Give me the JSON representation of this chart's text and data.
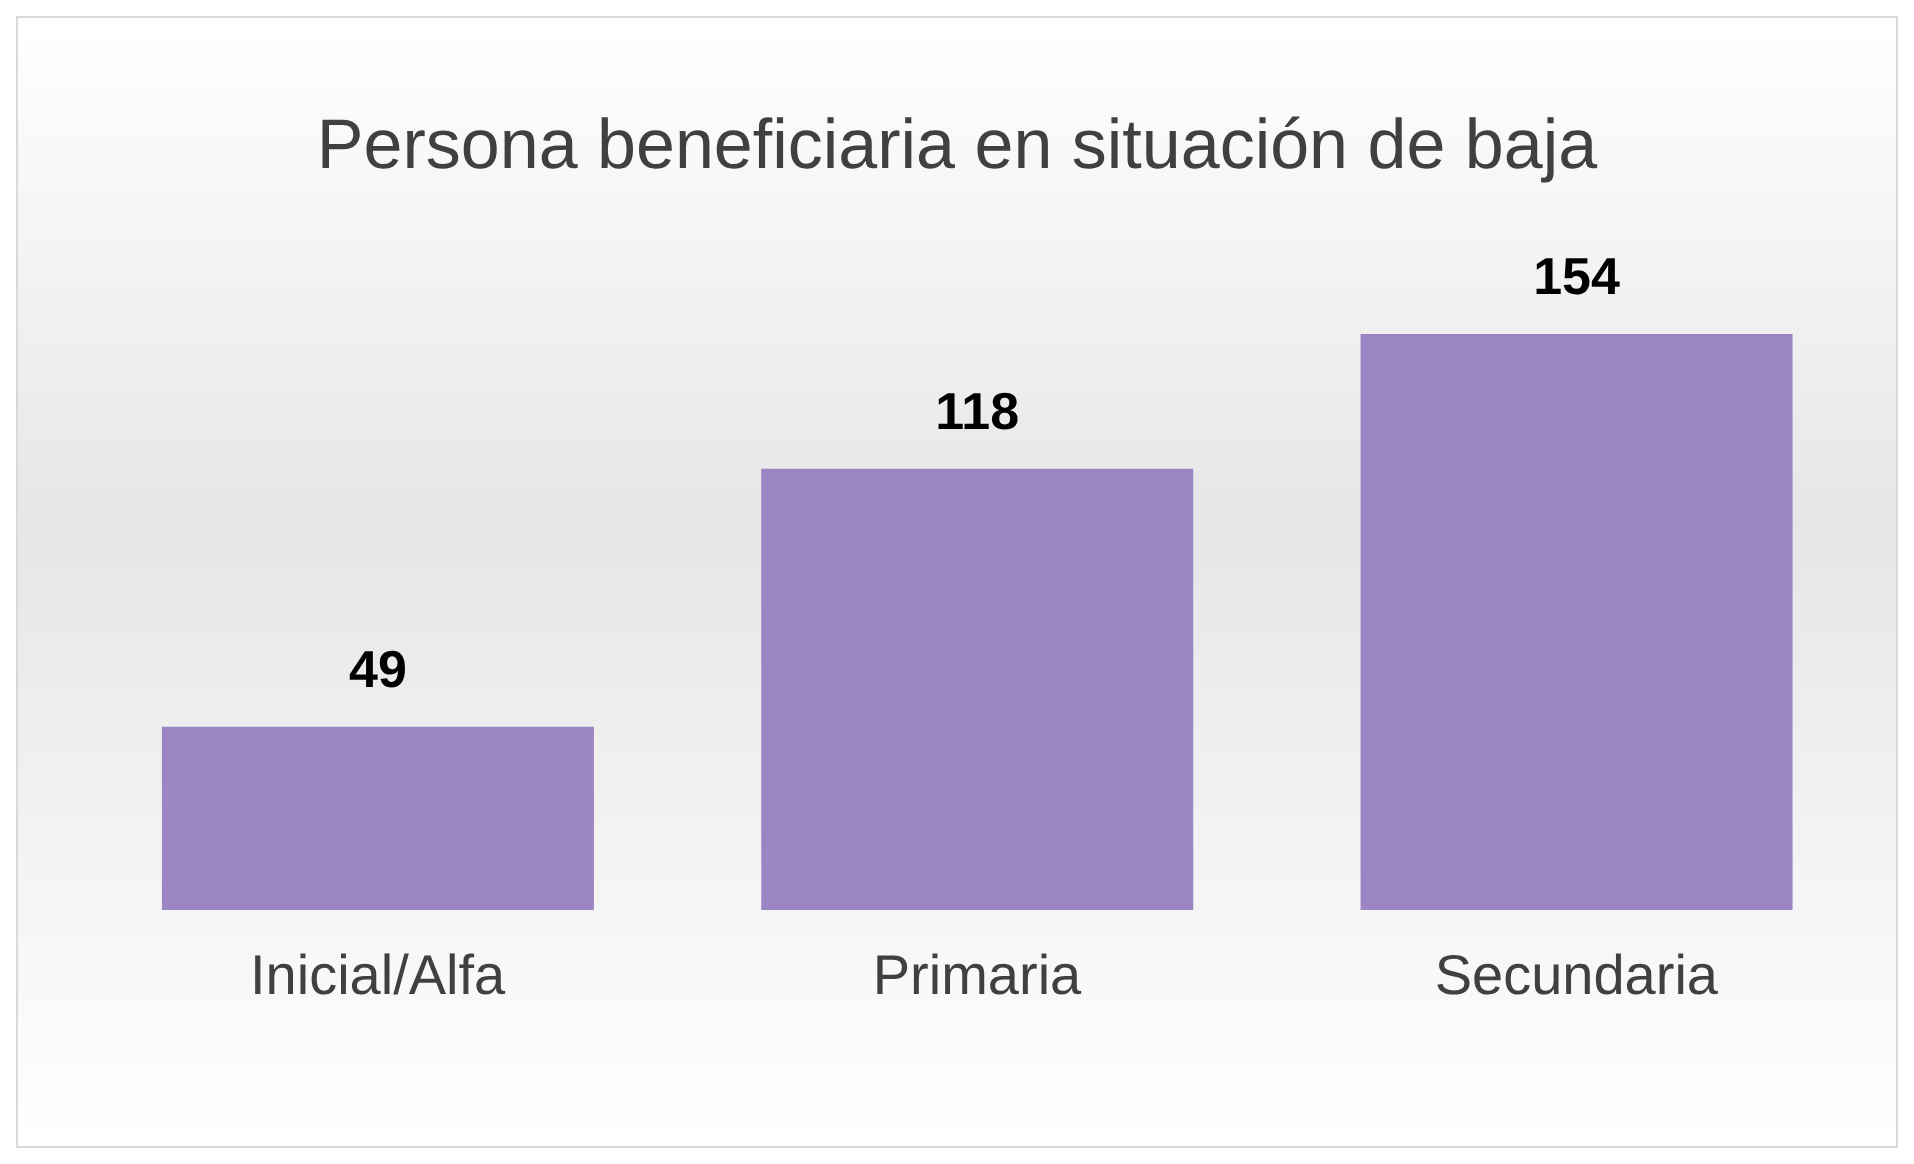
{
  "chart_data": {
    "type": "bar",
    "title": "Persona beneficiaria en situación de baja",
    "categories": [
      "Inicial/Alfa",
      "Primaria",
      "Secundaria"
    ],
    "values": [
      49,
      118,
      154
    ],
    "color": "#9b85c2",
    "data_labels": true,
    "tick_labels": "x",
    "grid": false,
    "legend": false
  }
}
